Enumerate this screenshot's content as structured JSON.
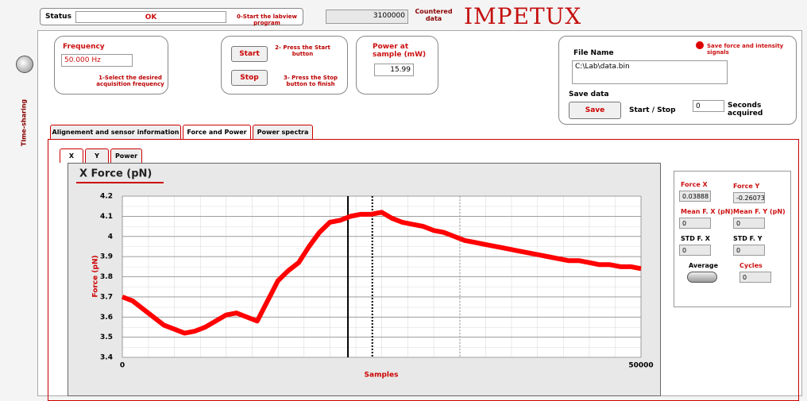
{
  "status": {
    "label": "Status",
    "value": "OK",
    "hint": "0-Start the labview program"
  },
  "counter": {
    "value": "3100000",
    "label": "Countered data"
  },
  "brand": "IMPETUX",
  "side_label": "Time-sharing",
  "frequency": {
    "label": "Frequency",
    "value": "50.000 Hz",
    "hint": "1-Select the desired acquisition frequency"
  },
  "start": {
    "button": "Start",
    "hint": "2- Press the Start button"
  },
  "stop": {
    "button": "Stop",
    "hint": "3- Press the Stop button to finish"
  },
  "power": {
    "label": "Power at sample (mW)",
    "value": "15.99"
  },
  "file": {
    "label": "File Name",
    "path": "C:\\Lab\\data.bin",
    "signals": "Save force and intensity signals",
    "save_label": "Save data",
    "save_button": "Save",
    "start_stop": "Start / Stop",
    "seconds_value": "0",
    "seconds_label": "Seconds acquired"
  },
  "tabs": [
    "Alignement and sensor information",
    "Force and Power",
    "Power spectra"
  ],
  "subtabs": [
    "X",
    "Y",
    "Power"
  ],
  "stats": {
    "force_x_label": "Force X",
    "force_x": "0.03888",
    "force_y_label": "Force Y",
    "force_y": "-0.26073",
    "mean_x_label": "Mean F. X (pN)",
    "mean_x": "0",
    "mean_y_label": "Mean F. Y (pN)",
    "mean_y": "0",
    "std_x_label": "STD F. X",
    "std_x": "0",
    "std_y_label": "STD F. Y",
    "std_y": "0",
    "average_label": "Average",
    "cycles_label": "Cycles",
    "cycles": "0"
  },
  "chart_data": {
    "type": "line",
    "title": "X Force (pN)",
    "x_label": "Samples",
    "y_label": "Force (pN)",
    "xlim": [
      0,
      50000
    ],
    "xticks": [
      0,
      50000
    ],
    "ylim": [
      3.4,
      4.2
    ],
    "yticks": [
      3.4,
      3.5,
      3.6,
      3.7,
      3.8,
      3.9,
      4,
      4.1,
      4.2
    ],
    "grid": true,
    "markers": [
      21750,
      24100,
      32550
    ],
    "x": [
      0,
      1000,
      2000,
      3000,
      4000,
      5000,
      6000,
      7000,
      8000,
      9000,
      10000,
      11000,
      12000,
      13000,
      14000,
      15000,
      16000,
      17000,
      18000,
      19000,
      20000,
      21000,
      22000,
      23000,
      24000,
      25000,
      26000,
      27000,
      28000,
      29000,
      30000,
      31000,
      32000,
      33000,
      34000,
      35000,
      36000,
      37000,
      38000,
      39000,
      40000,
      41000,
      42000,
      43000,
      44000,
      45000,
      46000,
      47000,
      48000,
      49000,
      50000
    ],
    "color": "#ff0000",
    "values": [
      3.7,
      3.68,
      3.64,
      3.6,
      3.56,
      3.54,
      3.52,
      3.53,
      3.55,
      3.58,
      3.61,
      3.62,
      3.6,
      3.58,
      3.68,
      3.78,
      3.83,
      3.87,
      3.95,
      4.02,
      4.07,
      4.08,
      4.1,
      4.11,
      4.11,
      4.12,
      4.09,
      4.07,
      4.06,
      4.05,
      4.03,
      4.02,
      4.0,
      3.98,
      3.97,
      3.96,
      3.95,
      3.94,
      3.93,
      3.92,
      3.91,
      3.9,
      3.89,
      3.88,
      3.88,
      3.87,
      3.86,
      3.86,
      3.85,
      3.85,
      3.84
    ]
  }
}
